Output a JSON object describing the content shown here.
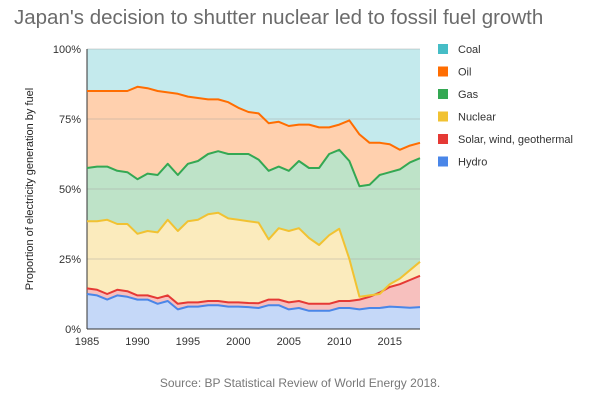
{
  "title": "Japan's decision to shutter nuclear led to fossil fuel growth",
  "source": "Source: BP Statistical Review of World Energy 2018.",
  "chart_data": {
    "type": "area",
    "stacked": true,
    "ylabel": "Proportion of electricity generation by fuel",
    "xlabel": "",
    "x": [
      1985,
      1986,
      1987,
      1988,
      1989,
      1990,
      1991,
      1992,
      1993,
      1994,
      1995,
      1996,
      1997,
      1998,
      1999,
      2000,
      2001,
      2002,
      2003,
      2004,
      2005,
      2006,
      2007,
      2008,
      2009,
      2010,
      2011,
      2012,
      2013,
      2014,
      2015,
      2016,
      2017,
      2018
    ],
    "xlim": [
      1985,
      2018
    ],
    "xticks": [
      "1985",
      "1990",
      "1995",
      "2000",
      "2005",
      "2010",
      "2015"
    ],
    "ylim": [
      0,
      100
    ],
    "yticks": [
      "0%",
      "25%",
      "50%",
      "75%",
      "100%"
    ],
    "grid": true,
    "legend_position": "right",
    "series": [
      {
        "name": "Hydro",
        "color": "#4a86e8",
        "cumulative": [
          12.5,
          12,
          10.5,
          12,
          11.5,
          10.5,
          10.5,
          9,
          10,
          7,
          8,
          8,
          8.5,
          8.5,
          8,
          8,
          7.8,
          7.5,
          8.5,
          8.5,
          7,
          7.5,
          6.5,
          6.5,
          6.5,
          7.5,
          7.5,
          7,
          7.5,
          7.5,
          8,
          7.8,
          7.6,
          7.8
        ]
      },
      {
        "name": "Solar, wind, geothermal",
        "color": "#e53935",
        "cumulative": [
          14.5,
          14,
          12.5,
          14,
          13.5,
          12,
          12,
          11,
          12,
          9,
          9.5,
          9.5,
          10,
          10,
          9.5,
          9.5,
          9.3,
          9.2,
          10.5,
          10.5,
          9.5,
          10,
          9,
          9,
          9,
          10,
          10,
          10.5,
          11.5,
          13,
          15,
          16,
          17.5,
          19
        ]
      },
      {
        "name": "Nuclear",
        "color": "#f1c232",
        "cumulative": [
          38.5,
          38.5,
          39,
          37.5,
          37.5,
          34,
          35,
          34.5,
          39,
          35,
          38.5,
          39,
          41,
          41.5,
          39.5,
          39,
          38.5,
          38,
          32,
          36,
          35,
          36,
          32.5,
          30,
          33.5,
          35.8,
          25,
          11.5,
          12,
          12.5,
          16,
          18,
          21,
          24
        ]
      },
      {
        "name": "Gas",
        "color": "#34a853",
        "cumulative": [
          57.5,
          58,
          58,
          56.5,
          56,
          53.5,
          55.5,
          55,
          59,
          55,
          59,
          60,
          62.5,
          63.5,
          62.5,
          62.5,
          62.5,
          60.5,
          56.5,
          58,
          56.5,
          60,
          57.5,
          57.5,
          62.5,
          64,
          60,
          51,
          51.5,
          55,
          56,
          57,
          59.5,
          61
        ]
      },
      {
        "name": "Oil",
        "color": "#ff6d01",
        "cumulative": [
          85,
          85,
          85,
          85,
          85,
          86.5,
          86,
          85,
          84.5,
          84,
          83,
          82.5,
          82,
          82,
          81,
          79,
          77.5,
          77,
          73.5,
          74,
          72.5,
          73,
          73,
          72,
          72,
          73,
          74.5,
          69.5,
          66.5,
          66.5,
          66,
          64,
          65.5,
          66.5
        ]
      },
      {
        "name": "Coal",
        "color": "#46bdc6",
        "cumulative": [
          100,
          100,
          100,
          100,
          100,
          100,
          100,
          100,
          100,
          100,
          100,
          100,
          100,
          100,
          100,
          100,
          100,
          100,
          100,
          100,
          100,
          100,
          100,
          100,
          100,
          100,
          100,
          100,
          100,
          100,
          100,
          100,
          100,
          100
        ]
      }
    ],
    "legend": [
      {
        "name": "Coal",
        "color": "#46bdc6"
      },
      {
        "name": "Oil",
        "color": "#ff6d01"
      },
      {
        "name": "Gas",
        "color": "#34a853"
      },
      {
        "name": "Nuclear",
        "color": "#f1c232"
      },
      {
        "name": "Solar, wind, geothermal",
        "color": "#e53935"
      },
      {
        "name": "Hydro",
        "color": "#4a86e8"
      }
    ]
  }
}
